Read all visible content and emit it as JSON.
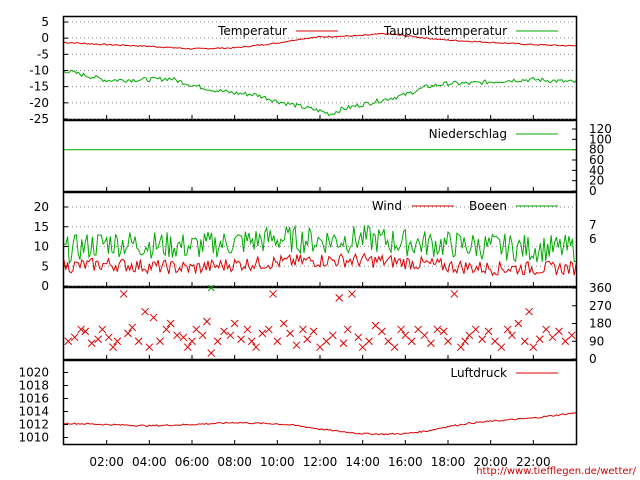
{
  "x_tick_labels": [
    "02:00",
    "04:00",
    "06:00",
    "08:00",
    "10:00",
    "12:00",
    "14:00",
    "16:00",
    "18:00",
    "20:00",
    "22:00"
  ],
  "footer_url": "http://www.tiefflegen.de/wetter/",
  "colors": {
    "red": "#dd0000",
    "green": "#00aa00",
    "grid": "#888888"
  },
  "chart_data": [
    {
      "id": "temp",
      "type": "line",
      "ylim": [
        -25,
        5
      ],
      "y_ticks": [
        5,
        0,
        -5,
        -10,
        -15,
        -20,
        -25
      ],
      "x_range_hours": [
        0,
        24
      ],
      "series": [
        {
          "name": "Temperatur",
          "color": "red",
          "points": [
            [
              0,
              -1.3
            ],
            [
              2,
              -2
            ],
            [
              4,
              -2.5
            ],
            [
              6,
              -3.3
            ],
            [
              8,
              -3
            ],
            [
              10,
              -1.5
            ],
            [
              11,
              -0.3
            ],
            [
              12,
              0.4
            ],
            [
              13,
              0.6
            ],
            [
              14,
              0.8
            ],
            [
              15,
              1.4
            ],
            [
              16,
              0.8
            ],
            [
              17,
              0
            ],
            [
              18,
              -0.6
            ],
            [
              20,
              -1.3
            ],
            [
              22,
              -2
            ],
            [
              24,
              -2.4
            ]
          ]
        },
        {
          "name": "Taupunkttemperatur",
          "color": "green",
          "points": [
            [
              0,
              -10
            ],
            [
              1,
              -11.5
            ],
            [
              2,
              -13
            ],
            [
              4,
              -12.8
            ],
            [
              5,
              -12.5
            ],
            [
              6,
              -14.5
            ],
            [
              7,
              -16
            ],
            [
              8,
              -17
            ],
            [
              9,
              -17.5
            ],
            [
              10,
              -19.5
            ],
            [
              11,
              -21
            ],
            [
              12,
              -22.5
            ],
            [
              12.5,
              -23.5
            ],
            [
              13,
              -22
            ],
            [
              14,
              -20.5
            ],
            [
              15,
              -19
            ],
            [
              16,
              -17.5
            ],
            [
              17,
              -15
            ],
            [
              18,
              -14
            ],
            [
              19,
              -14
            ],
            [
              20,
              -13.5
            ],
            [
              21,
              -13
            ],
            [
              22,
              -12.8
            ],
            [
              23,
              -13.2
            ],
            [
              24,
              -13.6
            ]
          ]
        }
      ]
    },
    {
      "id": "rain",
      "type": "line",
      "ylim": [
        0,
        120
      ],
      "y_ticks": [
        120,
        100,
        80,
        60,
        40,
        20,
        0
      ],
      "series": [
        {
          "name": "Niederschlag",
          "color": "green",
          "points": [
            [
              0,
              80
            ],
            [
              24,
              80
            ]
          ]
        }
      ]
    },
    {
      "id": "wind",
      "type": "line",
      "ylim": [
        0,
        20
      ],
      "y_ticks_left": [
        20,
        15,
        10,
        5,
        0
      ],
      "y_ticks_right": [
        7,
        6
      ],
      "series": [
        {
          "name": "Wind",
          "color": "red",
          "points": [
            [
              0,
              5
            ],
            [
              2,
              5.5
            ],
            [
              4,
              5
            ],
            [
              6,
              4.5
            ],
            [
              8,
              5.5
            ],
            [
              10,
              6
            ],
            [
              12,
              6.5
            ],
            [
              14,
              6.5
            ],
            [
              16,
              6
            ],
            [
              18,
              5
            ],
            [
              20,
              4.5
            ],
            [
              22,
              4.5
            ],
            [
              24,
              4.5
            ]
          ]
        },
        {
          "name": "Boeen",
          "color": "green",
          "points": [
            [
              0,
              9
            ],
            [
              2,
              11
            ],
            [
              4,
              10.5
            ],
            [
              6,
              10
            ],
            [
              8,
              11
            ],
            [
              10,
              12
            ],
            [
              12,
              11.5
            ],
            [
              14,
              12
            ],
            [
              16,
              11
            ],
            [
              18,
              10.5
            ],
            [
              20,
              10
            ],
            [
              22,
              9.5
            ],
            [
              24,
              9.5
            ]
          ]
        }
      ]
    },
    {
      "id": "winddir",
      "type": "scatter",
      "ylim": [
        0,
        360
      ],
      "y_ticks": [
        360,
        270,
        180,
        90,
        0
      ],
      "series": [
        {
          "name": "",
          "color": "red",
          "points": [
            [
              0.2,
              90
            ],
            [
              0.5,
              110
            ],
            [
              0.8,
              150
            ],
            [
              1.0,
              140
            ],
            [
              1.3,
              80
            ],
            [
              1.6,
              100
            ],
            [
              1.8,
              150
            ],
            [
              2.1,
              110
            ],
            [
              2.3,
              60
            ],
            [
              2.5,
              90
            ],
            [
              2.8,
              330
            ],
            [
              3.0,
              130
            ],
            [
              3.2,
              160
            ],
            [
              3.5,
              90
            ],
            [
              3.8,
              240
            ],
            [
              4.0,
              60
            ],
            [
              4.2,
              210
            ],
            [
              4.5,
              90
            ],
            [
              4.8,
              150
            ],
            [
              5.0,
              180
            ],
            [
              5.3,
              120
            ],
            [
              5.6,
              110
            ],
            [
              5.8,
              60
            ],
            [
              6.0,
              90
            ],
            [
              6.2,
              150
            ],
            [
              6.5,
              120
            ],
            [
              6.7,
              190
            ],
            [
              6.9,
              30
            ],
            [
              7.2,
              90
            ],
            [
              7.5,
              140
            ],
            [
              7.8,
              120
            ],
            [
              8.0,
              180
            ],
            [
              8.3,
              100
            ],
            [
              8.6,
              150
            ],
            [
              8.8,
              90
            ],
            [
              9.0,
              60
            ],
            [
              9.3,
              130
            ],
            [
              9.6,
              150
            ],
            [
              9.8,
              330
            ],
            [
              10.0,
              90
            ],
            [
              10.3,
              180
            ],
            [
              10.6,
              130
            ],
            [
              10.9,
              70
            ],
            [
              11.2,
              150
            ],
            [
              11.4,
              100
            ],
            [
              11.7,
              140
            ],
            [
              12.0,
              60
            ],
            [
              12.3,
              90
            ],
            [
              12.6,
              120
            ],
            [
              12.9,
              310
            ],
            [
              13.1,
              80
            ],
            [
              13.3,
              150
            ],
            [
              13.5,
              330
            ],
            [
              13.8,
              110
            ],
            [
              14.0,
              60
            ],
            [
              14.3,
              90
            ],
            [
              14.6,
              170
            ],
            [
              14.9,
              140
            ],
            [
              15.2,
              90
            ],
            [
              15.5,
              60
            ],
            [
              15.8,
              150
            ],
            [
              16.0,
              120
            ],
            [
              16.3,
              90
            ],
            [
              16.6,
              150
            ],
            [
              16.9,
              120
            ],
            [
              17.2,
              80
            ],
            [
              17.5,
              150
            ],
            [
              17.8,
              140
            ],
            [
              18.0,
              90
            ],
            [
              18.3,
              330
            ],
            [
              18.6,
              60
            ],
            [
              18.8,
              90
            ],
            [
              19.0,
              120
            ],
            [
              19.3,
              150
            ],
            [
              19.6,
              100
            ],
            [
              19.9,
              140
            ],
            [
              20.2,
              90
            ],
            [
              20.5,
              60
            ],
            [
              20.8,
              150
            ],
            [
              21.0,
              120
            ],
            [
              21.3,
              180
            ],
            [
              21.6,
              90
            ],
            [
              21.8,
              240
            ],
            [
              22.0,
              60
            ],
            [
              22.3,
              100
            ],
            [
              22.6,
              150
            ],
            [
              22.9,
              110
            ],
            [
              23.2,
              140
            ],
            [
              23.5,
              90
            ],
            [
              23.8,
              120
            ]
          ]
        }
      ]
    },
    {
      "id": "pressure",
      "type": "line",
      "ylim": [
        1009,
        1021
      ],
      "y_ticks": [
        1020,
        1018,
        1016,
        1014,
        1012,
        1010
      ],
      "series": [
        {
          "name": "Luftdruck",
          "color": "red",
          "points": [
            [
              0,
              1012.2
            ],
            [
              2,
              1012
            ],
            [
              4,
              1011.8
            ],
            [
              6,
              1012
            ],
            [
              8,
              1012.3
            ],
            [
              10,
              1012.1
            ],
            [
              11,
              1011.8
            ],
            [
              12,
              1011.3
            ],
            [
              13,
              1010.9
            ],
            [
              14,
              1010.6
            ],
            [
              15,
              1010.5
            ],
            [
              16,
              1010.6
            ],
            [
              17,
              1011
            ],
            [
              18,
              1011.7
            ],
            [
              19,
              1012.2
            ],
            [
              20,
              1012.5
            ],
            [
              22,
              1013
            ],
            [
              24,
              1013.8
            ]
          ]
        }
      ]
    }
  ]
}
